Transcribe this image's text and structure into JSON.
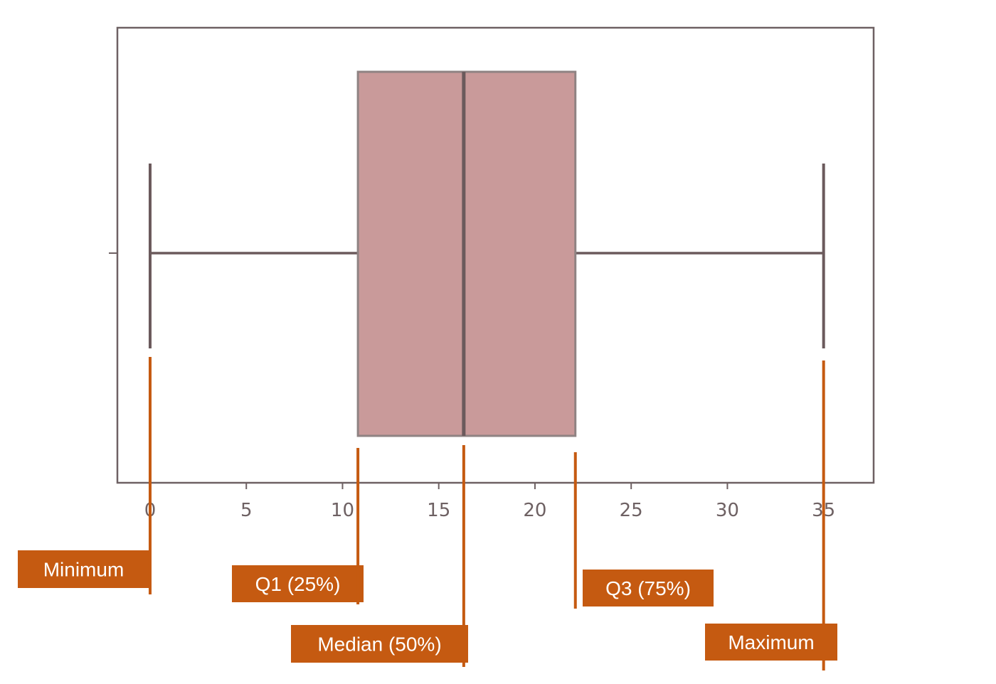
{
  "chart_data": {
    "type": "box",
    "title": "",
    "xlabel": "",
    "ylabel": "",
    "xlim": [
      -1.7,
      37.6
    ],
    "x_ticks": [
      0,
      5,
      10,
      15,
      20,
      25,
      30,
      35
    ],
    "x_tick_labels": [
      "0",
      "5",
      "10",
      "15",
      "20",
      "25",
      "30",
      "35"
    ],
    "grid": false,
    "box": {
      "min": 0,
      "q1": 10.8,
      "median": 16.3,
      "q3": 22.1,
      "max": 35
    },
    "annotations": [
      {
        "key": "min",
        "label": "Minimum"
      },
      {
        "key": "q1",
        "label": "Q1 (25%)"
      },
      {
        "key": "median",
        "label": "Median (50%)"
      },
      {
        "key": "q3",
        "label": "Q3 (75%)"
      },
      {
        "key": "max",
        "label": "Maximum"
      }
    ]
  },
  "colors": {
    "box_fill": "#c99a9a",
    "box_edge": "#8f8383",
    "line": "#6b5a5c",
    "axis": "#6e6163",
    "annotation": "#c55a11"
  }
}
